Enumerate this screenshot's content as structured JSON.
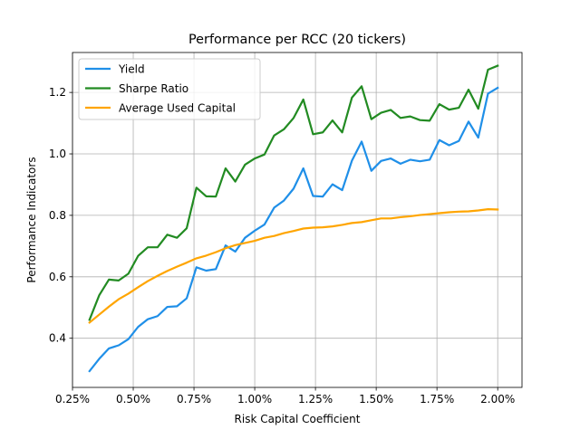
{
  "chart_data": {
    "type": "line",
    "title": "Performance per RCC (20 tickers)",
    "xlabel": "Risk Capital Coefficient",
    "ylabel": "Performance Indicators",
    "xlim": [
      0.0025,
      0.021
    ],
    "ylim": [
      0.24,
      1.33
    ],
    "grid": true,
    "legend_position": "top-left",
    "x_ticks": [
      0.0025,
      0.005,
      0.0075,
      0.01,
      0.0125,
      0.015,
      0.0175,
      0.02
    ],
    "x_tick_labels": [
      "0.25%",
      "0.50%",
      "0.75%",
      "1.00%",
      "1.25%",
      "1.50%",
      "1.75%",
      "2.00%"
    ],
    "y_ticks": [
      0.4,
      0.6,
      0.8,
      1.0,
      1.2
    ],
    "y_tick_labels": [
      "0.4",
      "0.6",
      "0.8",
      "1.0",
      "1.2"
    ],
    "x": [
      0.0032,
      0.0036,
      0.004,
      0.0044,
      0.0048,
      0.0052,
      0.0056,
      0.006,
      0.0064,
      0.0068,
      0.0072,
      0.0076,
      0.008,
      0.0084,
      0.0088,
      0.0092,
      0.0096,
      0.01,
      0.0104,
      0.0108,
      0.0112,
      0.0116,
      0.012,
      0.0124,
      0.0128,
      0.0132,
      0.0136,
      0.014,
      0.0144,
      0.0148,
      0.0152,
      0.0156,
      0.016,
      0.0164,
      0.0168,
      0.0172,
      0.0176,
      0.018,
      0.0184,
      0.0188,
      0.0192,
      0.0196,
      0.02
    ],
    "series": [
      {
        "name": "Yield",
        "color": "#1f8fe8",
        "values": [
          0.293,
          0.333,
          0.367,
          0.377,
          0.397,
          0.437,
          0.462,
          0.472,
          0.502,
          0.504,
          0.53,
          0.631,
          0.62,
          0.625,
          0.702,
          0.682,
          0.727,
          0.75,
          0.77,
          0.825,
          0.848,
          0.887,
          0.953,
          0.863,
          0.861,
          0.901,
          0.882,
          0.978,
          1.04,
          0.945,
          0.977,
          0.985,
          0.968,
          0.981,
          0.976,
          0.981,
          1.045,
          1.028,
          1.042,
          1.105,
          1.053,
          1.196,
          1.215
        ]
      },
      {
        "name": "Sharpe Ratio",
        "color": "#228b22",
        "values": [
          0.46,
          0.54,
          0.591,
          0.588,
          0.61,
          0.668,
          0.696,
          0.696,
          0.737,
          0.727,
          0.758,
          0.89,
          0.862,
          0.861,
          0.953,
          0.91,
          0.965,
          0.985,
          0.998,
          1.06,
          1.08,
          1.117,
          1.177,
          1.064,
          1.07,
          1.109,
          1.07,
          1.183,
          1.22,
          1.113,
          1.134,
          1.143,
          1.117,
          1.122,
          1.11,
          1.108,
          1.162,
          1.144,
          1.15,
          1.209,
          1.147,
          1.274,
          1.287
        ]
      },
      {
        "name": "Average Used Capital",
        "color": "#ffa500",
        "values": [
          0.451,
          0.477,
          0.503,
          0.527,
          0.545,
          0.566,
          0.586,
          0.603,
          0.619,
          0.633,
          0.646,
          0.66,
          0.669,
          0.68,
          0.693,
          0.703,
          0.71,
          0.717,
          0.727,
          0.733,
          0.742,
          0.749,
          0.757,
          0.76,
          0.761,
          0.764,
          0.769,
          0.775,
          0.778,
          0.784,
          0.79,
          0.79,
          0.794,
          0.797,
          0.801,
          0.804,
          0.807,
          0.81,
          0.812,
          0.813,
          0.816,
          0.82,
          0.819
        ]
      }
    ]
  }
}
